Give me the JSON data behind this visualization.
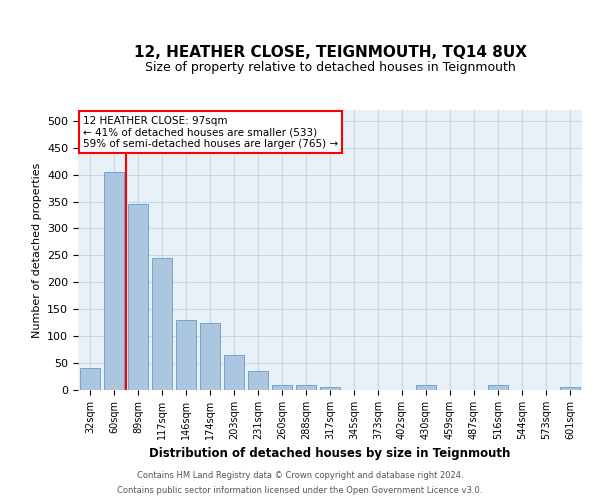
{
  "title1": "12, HEATHER CLOSE, TEIGNMOUTH, TQ14 8UX",
  "title2": "Size of property relative to detached houses in Teignmouth",
  "xlabel": "Distribution of detached houses by size in Teignmouth",
  "ylabel": "Number of detached properties",
  "categories": [
    "32sqm",
    "60sqm",
    "89sqm",
    "117sqm",
    "146sqm",
    "174sqm",
    "203sqm",
    "231sqm",
    "260sqm",
    "288sqm",
    "317sqm",
    "345sqm",
    "373sqm",
    "402sqm",
    "430sqm",
    "459sqm",
    "487sqm",
    "516sqm",
    "544sqm",
    "573sqm",
    "601sqm"
  ],
  "values": [
    40,
    405,
    345,
    245,
    130,
    125,
    65,
    35,
    10,
    10,
    5,
    0,
    0,
    0,
    10,
    0,
    0,
    10,
    0,
    0,
    5
  ],
  "bar_color": "#adc6e0",
  "bar_edge_color": "#6699cc",
  "annotation_text": "12 HEATHER CLOSE: 97sqm\n← 41% of detached houses are smaller (533)\n59% of semi-detached houses are larger (765) →",
  "annotation_box_color": "white",
  "annotation_box_edge_color": "red",
  "red_line_color": "red",
  "grid_color": "#c8d8e8",
  "background_color": "#e8f0f8",
  "ylim": [
    0,
    520
  ],
  "yticks": [
    0,
    50,
    100,
    150,
    200,
    250,
    300,
    350,
    400,
    450,
    500
  ],
  "footer1": "Contains HM Land Registry data © Crown copyright and database right 2024.",
  "footer2": "Contains public sector information licensed under the Open Government Licence v3.0."
}
